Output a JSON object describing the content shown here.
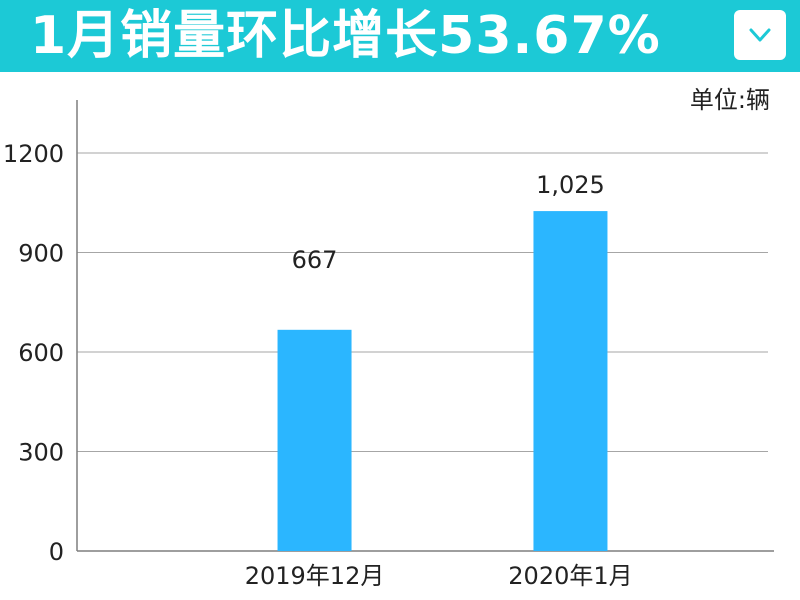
{
  "header": {
    "title": "1月销量环比增长53.67%",
    "accent_color": "#1cc9d6",
    "dropdown_icon": "chevron-down-icon"
  },
  "chart_data": {
    "type": "bar",
    "unit_label": "单位:辆",
    "categories": [
      "2019年12月",
      "2020年1月"
    ],
    "values": [
      667,
      1025
    ],
    "data_labels": [
      "667",
      "1,025"
    ],
    "y_ticks": [
      0,
      300,
      600,
      900,
      1200
    ],
    "ylim": [
      0,
      1360
    ],
    "grid": true,
    "bar_color": "#2bb6ff"
  }
}
